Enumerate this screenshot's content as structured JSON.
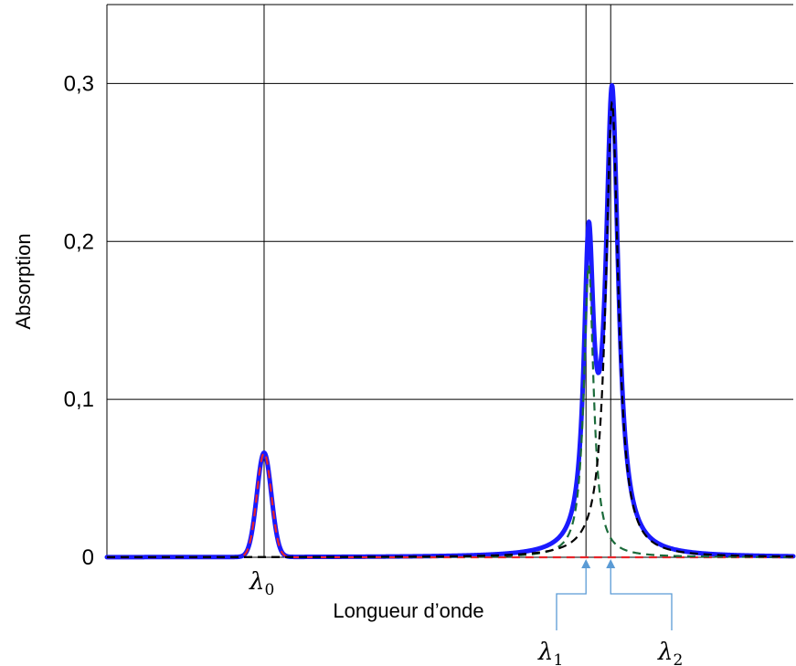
{
  "chart_data": {
    "type": "line",
    "xlabel": "Longueur d’onde",
    "ylabel": "Absorption",
    "xlim": [
      0,
      100
    ],
    "ylim": [
      0,
      0.35
    ],
    "y_ticks": [
      {
        "value": 0,
        "label": "0"
      },
      {
        "value": 0.1,
        "label": "0,1"
      },
      {
        "value": 0.2,
        "label": "0,2"
      },
      {
        "value": 0.3,
        "label": "0,3"
      }
    ],
    "grid": true,
    "x_gridlines": [
      22.9,
      69.8,
      73.4
    ],
    "x_tick_labels": [
      {
        "symbol": "λ",
        "sub": "0",
        "x": 22.9
      },
      {
        "symbol": "λ",
        "sub": "1",
        "x": 69.8
      },
      {
        "symbol": "λ",
        "sub": "2",
        "x": 73.4
      }
    ],
    "colors": {
      "total": "#1a1aff",
      "component0": "#e8242a",
      "component1": "#1b6b3a",
      "component2": "#000000",
      "gridline": "#000000",
      "arrow": "#5b9bd5"
    },
    "peaks": {
      "component0": {
        "center": 22.9,
        "amplitude": 0.066,
        "sigma": 1.05,
        "shape": "gaussian",
        "style": "dashed"
      },
      "component1": {
        "center": 70.2,
        "amplitude": 0.185,
        "gamma": 0.85,
        "shape": "lorentzian",
        "style": "dashed"
      },
      "component2": {
        "center": 73.6,
        "amplitude": 0.288,
        "gamma": 1.1,
        "shape": "lorentzian",
        "style": "dashed"
      }
    },
    "series": [
      {
        "component": "total",
        "style": "solid",
        "sum_of": [
          "component0",
          "component1",
          "component2"
        ]
      }
    ]
  }
}
